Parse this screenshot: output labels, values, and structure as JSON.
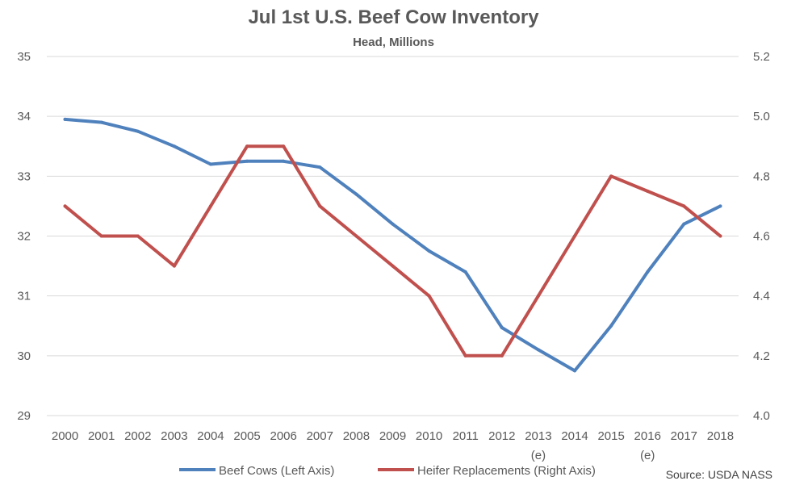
{
  "chart_data": {
    "type": "line",
    "title": "Jul 1st U.S. Beef Cow Inventory",
    "subtitle": "Head, Millions",
    "categories": [
      "2000",
      "2001",
      "2002",
      "2003",
      "2004",
      "2005",
      "2006",
      "2007",
      "2008",
      "2009",
      "2010",
      "2011",
      "2012",
      "2013",
      "2014",
      "2015",
      "2016",
      "2017",
      "2018"
    ],
    "category_notes": {
      "2013": "(e)",
      "2016": "(e)"
    },
    "y_left": {
      "min": 29,
      "max": 35,
      "ticks": [
        29,
        30,
        31,
        32,
        33,
        34,
        35
      ],
      "tick_labels": [
        "29",
        "30",
        "31",
        "32",
        "33",
        "34",
        "35"
      ]
    },
    "y_right": {
      "min": 4.0,
      "max": 5.2,
      "ticks": [
        4.0,
        4.2,
        4.4,
        4.6,
        4.8,
        5.0,
        5.2
      ],
      "tick_labels": [
        "4.0",
        "4.2",
        "4.4",
        "4.6",
        "4.8",
        "5.0",
        "5.2"
      ]
    },
    "grid": true,
    "legend_position": "bottom",
    "series": [
      {
        "name": "Beef Cows (Left Axis)",
        "axis": "left",
        "color": "#4f81bd",
        "values": [
          33.95,
          33.9,
          33.75,
          33.5,
          33.2,
          33.25,
          33.25,
          33.15,
          32.7,
          32.2,
          31.75,
          31.4,
          30.47,
          30.1,
          29.75,
          30.5,
          31.4,
          32.2,
          32.5
        ]
      },
      {
        "name": "Heifer Replacements (Right Axis)",
        "axis": "right",
        "color": "#c0504d",
        "values": [
          4.7,
          4.6,
          4.6,
          4.5,
          4.7,
          4.9,
          4.9,
          4.7,
          4.6,
          4.5,
          4.4,
          4.2,
          4.2,
          4.4,
          4.6,
          4.8,
          4.75,
          4.7,
          4.6
        ]
      }
    ],
    "source": "Source: USDA NASS"
  }
}
